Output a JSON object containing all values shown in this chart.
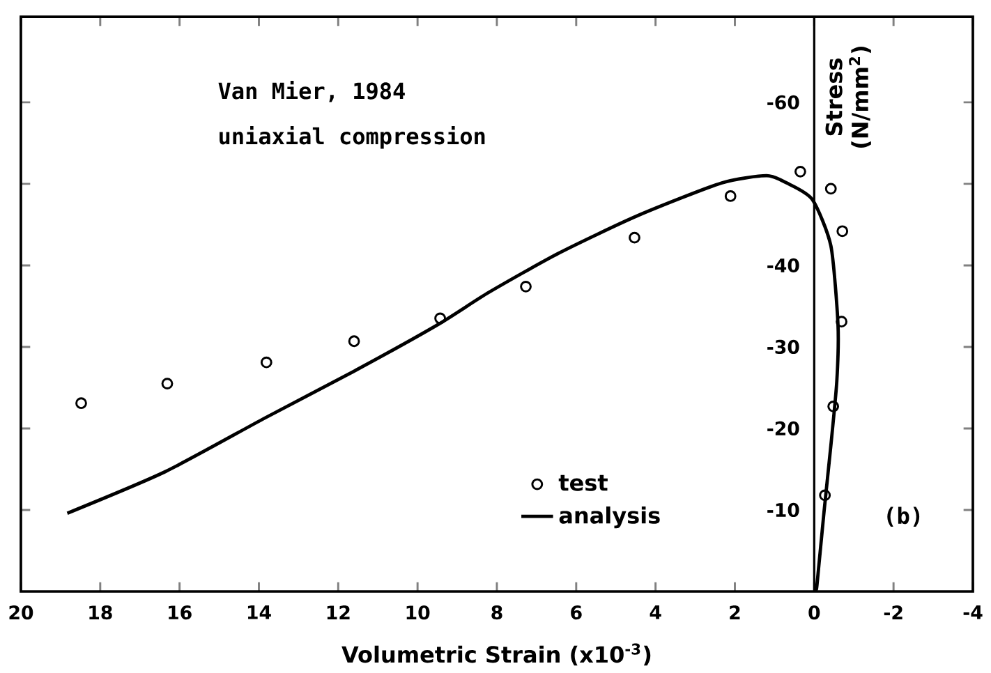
{
  "chart_data": {
    "type": "scatter",
    "xlabel": "Volumetric Strain (x10$^{-3}$)",
    "ylabel": "Stress (N/mm$^{2}$)",
    "xlim": [
      20,
      -4
    ],
    "ylim": [
      0,
      -70.5
    ],
    "xticks": [
      20,
      18,
      16,
      14,
      12,
      10,
      8,
      6,
      4,
      2,
      0,
      -2,
      -4
    ],
    "yticks": [
      -10,
      -20,
      -30,
      -40,
      {
        "value": -50,
        "label": null
      },
      -60
    ],
    "annotations": [
      "Van Mier, 1984",
      "uniaxial compression",
      "(b)"
    ],
    "legend": "bottom",
    "series": [
      {
        "name": "test",
        "marker": "circle",
        "color": "#000000",
        "x": [
          18.48,
          16.31,
          13.81,
          11.6,
          9.43,
          7.27,
          4.53,
          2.11,
          0.35,
          -0.42,
          -0.71,
          -0.69,
          -0.48,
          -0.27
        ],
        "values": [
          -23.1,
          -25.5,
          -28.1,
          -30.7,
          -33.5,
          -37.4,
          -43.4,
          -48.5,
          -51.5,
          -49.4,
          -44.2,
          -33.1,
          -22.7,
          -11.8
        ]
      },
      {
        "name": "analysis",
        "type": "line",
        "marker": "none",
        "line_style": "solid",
        "color": "#000000",
        "x": [
          18.83,
          16.36,
          13.84,
          11.61,
          9.5,
          8.2,
          6.44,
          4.45,
          2.34,
          1.2,
          0.69,
          0.05,
          -0.42,
          -0.6,
          -0.57,
          -0.42,
          -0.25,
          -0.07,
          -0.05
        ],
        "values": [
          -9.6,
          -14.7,
          -21.3,
          -27.0,
          -32.7,
          -36.7,
          -41.5,
          -46.1,
          -50.1,
          -51.0,
          -50.1,
          -48.1,
          -42.4,
          -32.7,
          -25.8,
          -17.9,
          -9.9,
          -0.8,
          -0.5
        ]
      }
    ]
  }
}
